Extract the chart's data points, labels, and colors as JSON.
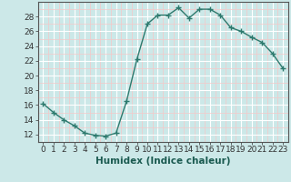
{
  "x": [
    0,
    1,
    2,
    3,
    4,
    5,
    6,
    7,
    8,
    9,
    10,
    11,
    12,
    13,
    14,
    15,
    16,
    17,
    18,
    19,
    20,
    21,
    22,
    23
  ],
  "y": [
    16.2,
    15.0,
    14.0,
    13.2,
    12.2,
    11.9,
    11.8,
    12.2,
    16.5,
    22.2,
    27.0,
    28.2,
    28.2,
    29.2,
    27.8,
    29.0,
    29.0,
    28.2,
    26.5,
    26.0,
    25.2,
    24.5,
    23.0,
    21.0
  ],
  "line_color": "#2d7a6e",
  "marker": "+",
  "marker_size": 4,
  "linewidth": 1.0,
  "bg_color": "#cce8e8",
  "grid_color": "#ffffff",
  "grid_color_minor": "#f5c8c8",
  "xlabel": "Humidex (Indice chaleur)",
  "xlabel_fontsize": 7.5,
  "tick_fontsize": 6.5,
  "xlim": [
    -0.5,
    23.5
  ],
  "ylim": [
    11,
    30
  ],
  "yticks": [
    12,
    14,
    16,
    18,
    20,
    22,
    24,
    26,
    28
  ],
  "xticks": [
    0,
    1,
    2,
    3,
    4,
    5,
    6,
    7,
    8,
    9,
    10,
    11,
    12,
    13,
    14,
    15,
    16,
    17,
    18,
    19,
    20,
    21,
    22,
    23
  ]
}
